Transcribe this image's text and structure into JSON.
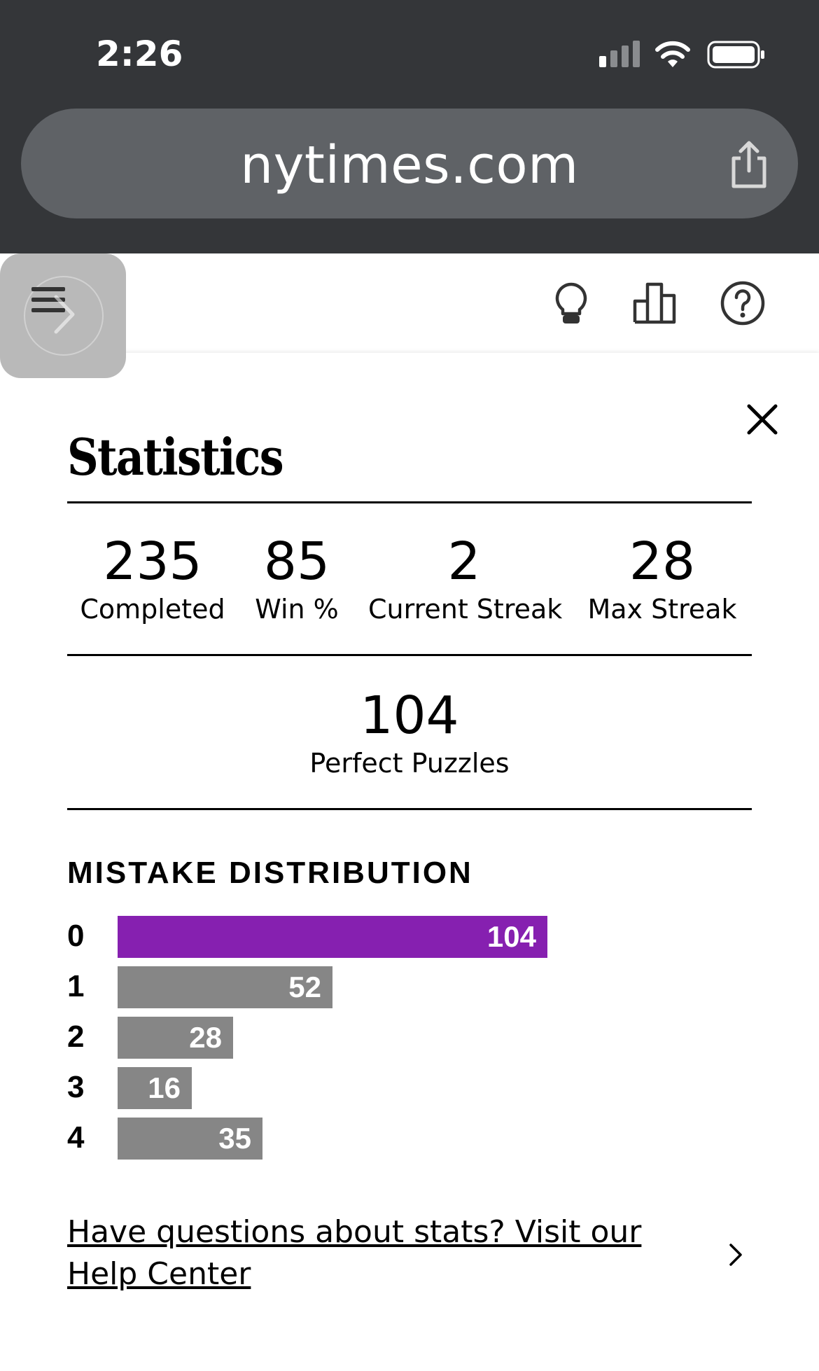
{
  "status_bar": {
    "time": "2:26"
  },
  "browser": {
    "url": "nytimes.com"
  },
  "header": {
    "icons": [
      "menu-icon",
      "forward-chevron-icon",
      "hint-bulb-icon",
      "stats-icon",
      "help-icon"
    ]
  },
  "modal": {
    "title": "Statistics",
    "stats": [
      {
        "value": "235",
        "label": "Completed"
      },
      {
        "value": "85",
        "label": "Win %"
      },
      {
        "value": "2",
        "label": "Current Streak"
      },
      {
        "value": "28",
        "label": "Max Streak"
      }
    ],
    "perfect": {
      "value": "104",
      "label": "Perfect Puzzles"
    },
    "distribution_title": "MISTAKE DISTRIBUTION",
    "distribution": [
      {
        "mistakes": "0",
        "count": "104"
      },
      {
        "mistakes": "1",
        "count": "52"
      },
      {
        "mistakes": "2",
        "count": "28"
      },
      {
        "mistakes": "3",
        "count": "16"
      },
      {
        "mistakes": "4",
        "count": "35"
      }
    ],
    "help_link": "Have questions about stats? Visit our Help Center"
  },
  "colors": {
    "highlight_bar": "#8620b0",
    "bar": "#868686",
    "chrome": "#343639"
  }
}
